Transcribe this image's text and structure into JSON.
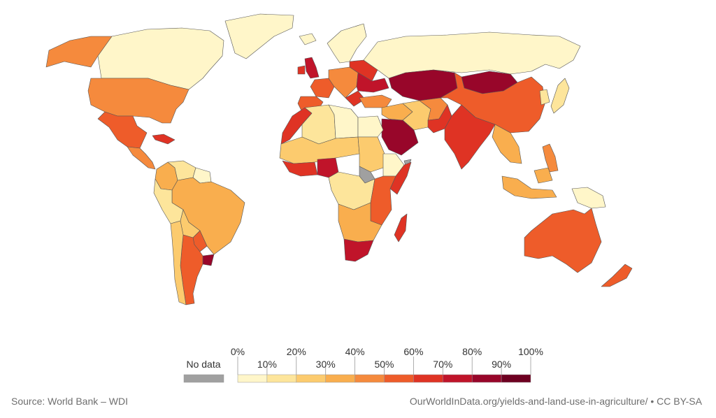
{
  "legend": {
    "no_data_label": "No data",
    "no_data_color": "#a0a0a0",
    "top_labels": [
      "0%",
      "20%",
      "40%",
      "60%",
      "80%",
      "100%"
    ],
    "bottom_labels": [
      "10%",
      "30%",
      "50%",
      "70%",
      "90%"
    ],
    "bin_colors": [
      "#fff6c9",
      "#fde59b",
      "#fccb6e",
      "#f9ae4e",
      "#f58a3d",
      "#ee5c2a",
      "#df3324",
      "#c0142a",
      "#98062a",
      "#6e0021"
    ]
  },
  "footer": {
    "source": "Source: World Bank – WDI",
    "credit": "OurWorldInData.org/yields-and-land-use-in-agriculture/ • CC BY-SA"
  },
  "map": {
    "stroke_color": "#555555",
    "countries": [
      {
        "id": "greenland",
        "bin": 0
      },
      {
        "id": "canada",
        "bin": 0
      },
      {
        "id": "alaska",
        "bin": 4
      },
      {
        "id": "usa",
        "bin": 4
      },
      {
        "id": "mexico",
        "bin": 5
      },
      {
        "id": "central-america",
        "bin": 4
      },
      {
        "id": "cuba",
        "bin": 6
      },
      {
        "id": "colombia",
        "bin": 3
      },
      {
        "id": "venezuela",
        "bin": 1
      },
      {
        "id": "guianas",
        "bin": 0
      },
      {
        "id": "brazil",
        "bin": 3
      },
      {
        "id": "peru",
        "bin": 1
      },
      {
        "id": "bolivia",
        "bin": 2
      },
      {
        "id": "paraguay",
        "bin": 5
      },
      {
        "id": "uruguay",
        "bin": 8
      },
      {
        "id": "argentina",
        "bin": 5
      },
      {
        "id": "chile",
        "bin": 2
      },
      {
        "id": "iceland",
        "bin": 0
      },
      {
        "id": "scandinavia",
        "bin": 0
      },
      {
        "id": "uk",
        "bin": 7
      },
      {
        "id": "ireland",
        "bin": 6
      },
      {
        "id": "france",
        "bin": 5
      },
      {
        "id": "iberia",
        "bin": 5
      },
      {
        "id": "central-europe",
        "bin": 4
      },
      {
        "id": "eastern-europe",
        "bin": 6
      },
      {
        "id": "ukraine",
        "bin": 7
      },
      {
        "id": "russia",
        "bin": 0
      },
      {
        "id": "kazakhstan",
        "bin": 8
      },
      {
        "id": "mongolia",
        "bin": 8
      },
      {
        "id": "china",
        "bin": 5
      },
      {
        "id": "turkey",
        "bin": 4
      },
      {
        "id": "middle-east",
        "bin": 3
      },
      {
        "id": "iran",
        "bin": 2
      },
      {
        "id": "saudi-arabia",
        "bin": 8
      },
      {
        "id": "afghanistan",
        "bin": 4
      },
      {
        "id": "pakistan",
        "bin": 6
      },
      {
        "id": "india",
        "bin": 6
      },
      {
        "id": "southeast-asia",
        "bin": 3
      },
      {
        "id": "japan",
        "bin": 1
      },
      {
        "id": "korea",
        "bin": 1
      },
      {
        "id": "philippines",
        "bin": 4
      },
      {
        "id": "indonesia",
        "bin": 3
      },
      {
        "id": "png",
        "bin": 0
      },
      {
        "id": "australia",
        "bin": 5
      },
      {
        "id": "new-zealand",
        "bin": 5
      },
      {
        "id": "morocco",
        "bin": 6
      },
      {
        "id": "algeria",
        "bin": 1
      },
      {
        "id": "libya",
        "bin": 0
      },
      {
        "id": "egypt",
        "bin": 0
      },
      {
        "id": "west-sahel",
        "bin": 2
      },
      {
        "id": "nigeria",
        "bin": 7
      },
      {
        "id": "west-coast",
        "bin": 6
      },
      {
        "id": "sudan",
        "bin": 2
      },
      {
        "id": "ethiopia",
        "bin": 0
      },
      {
        "id": "somalia",
        "bin": 6
      },
      {
        "id": "central-africa",
        "bin": 1
      },
      {
        "id": "east-africa",
        "bin": 5
      },
      {
        "id": "southern-africa",
        "bin": 3
      },
      {
        "id": "south-africa",
        "bin": 7
      },
      {
        "id": "madagascar",
        "bin": 6
      },
      {
        "id": "no-data-horn",
        "bin": -1
      }
    ]
  }
}
